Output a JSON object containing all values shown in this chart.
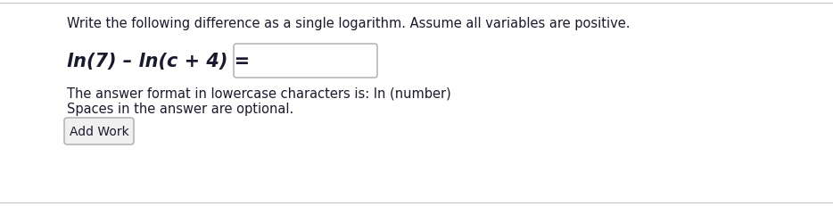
{
  "bg_color": "#ffffff",
  "top_line_color": "#cccccc",
  "bottom_line_color": "#cccccc",
  "instruction_text": "Write the following difference as a single logarithm. Assume all variables are positive.",
  "text_color": "#1a1a2e",
  "instruction_fontsize": 10.5,
  "equation_text": "ln(7) – ln(c + 4) =",
  "equation_fontsize": 15,
  "box_facecolor": "#ffffff",
  "box_edgecolor": "#aaaaaa",
  "answer_line1": "The answer format in lowercase characters is: ln (number)",
  "answer_line2": "Spaces in the answer are optional.",
  "answer_fontsize": 10.5,
  "button_text": "Add Work",
  "button_facecolor": "#f0f0f0",
  "button_edgecolor": "#aaaaaa",
  "button_fontsize": 10.0,
  "button_text_color": "#1a1a2e"
}
